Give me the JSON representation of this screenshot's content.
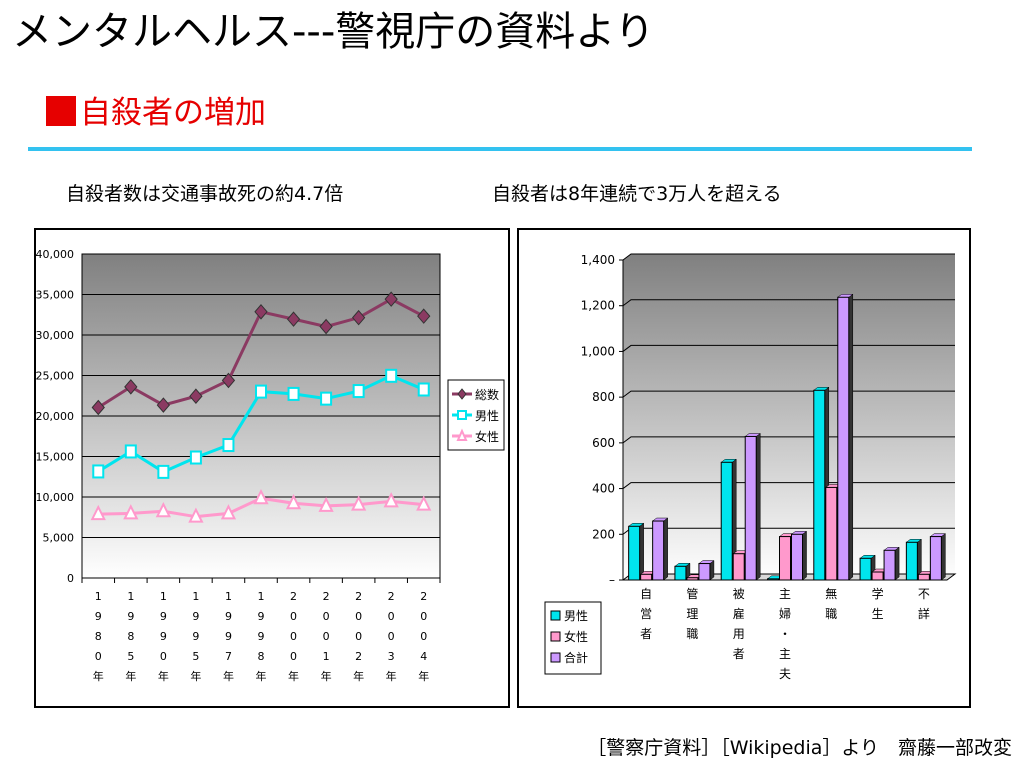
{
  "page": {
    "title": "メンタルヘルス---警視庁の資料より",
    "section_heading": "自殺者の増加",
    "caption_left": "自殺者数は交通事故死の約4.7倍",
    "caption_right": "自殺者は8年連続で3万人を超える",
    "source_note": "［警察庁資料］［Wikipedia］より　齋藤一部改変"
  },
  "colors": {
    "heading": "#e60000",
    "rule": "#33c2f0",
    "total": "#8b3a62",
    "male": "#00e5ee",
    "female": "#ff99cc",
    "total_bar": "#cc99ff"
  },
  "chart_data": [
    {
      "type": "line",
      "categories": [
        "1980年",
        "1985年",
        "1990年",
        "1995年",
        "1997年",
        "1998年",
        "2000年",
        "2001年",
        "2002年",
        "2003年",
        "2004年"
      ],
      "category_labels_vertical": [
        [
          "1",
          "9",
          "8",
          "0",
          "年"
        ],
        [
          "1",
          "9",
          "8",
          "5",
          "年"
        ],
        [
          "1",
          "9",
          "9",
          "0",
          "年"
        ],
        [
          "1",
          "9",
          "9",
          "5",
          "年"
        ],
        [
          "1",
          "9",
          "9",
          "7",
          "年"
        ],
        [
          "1",
          "9",
          "9",
          "8",
          "年"
        ],
        [
          "2",
          "0",
          "0",
          "0",
          "年"
        ],
        [
          "2",
          "0",
          "0",
          "1",
          "年"
        ],
        [
          "2",
          "0",
          "0",
          "2",
          "年"
        ],
        [
          "2",
          "0",
          "0",
          "3",
          "年"
        ],
        [
          "2",
          "0",
          "0",
          "4",
          "年"
        ]
      ],
      "series": [
        {
          "name": "総数",
          "values": [
            21048,
            23599,
            21346,
            22445,
            24391,
            32863,
            31957,
            31042,
            32143,
            34427,
            32325
          ]
        },
        {
          "name": "男性",
          "values": [
            13155,
            15624,
            13102,
            14874,
            16416,
            23013,
            22727,
            22144,
            23080,
            24963,
            23272
          ]
        },
        {
          "name": "女性",
          "values": [
            7893,
            7975,
            8244,
            7571,
            7975,
            9850,
            9230,
            8898,
            9063,
            9464,
            9053
          ]
        }
      ],
      "ylim": [
        0,
        40000
      ],
      "yticks": [
        "0",
        "5,000",
        "10,000",
        "15,000",
        "20,000",
        "25,000",
        "30,000",
        "35,000",
        "40,000"
      ],
      "grid": true,
      "legend": "right"
    },
    {
      "type": "bar",
      "categories": [
        "自営者",
        "管理職",
        "被雇用者",
        "主婦・主夫",
        "無職",
        "学生",
        "不詳"
      ],
      "category_labels_vertical": [
        [
          "自",
          "営",
          "者"
        ],
        [
          "管",
          "理",
          "職"
        ],
        [
          "被",
          "雇",
          "用",
          "者"
        ],
        [
          "主",
          "婦",
          "・",
          "主",
          "夫"
        ],
        [
          "無",
          "職"
        ],
        [
          "学",
          "生"
        ],
        [
          "不",
          "詳"
        ]
      ],
      "series": [
        {
          "name": "男性",
          "values": [
            235,
            60,
            515,
            5,
            830,
            95,
            165
          ]
        },
        {
          "name": "女性",
          "values": [
            25,
            10,
            115,
            190,
            405,
            35,
            25
          ]
        },
        {
          "name": "合計",
          "values": [
            258,
            72,
            628,
            200,
            1237,
            130,
            190
          ]
        }
      ],
      "ylim": [
        0,
        1400
      ],
      "yticks": [
        "–",
        "200",
        "400",
        "600",
        "800",
        "1,000",
        "1,200",
        "1,400"
      ],
      "grid": true,
      "legend": "bottom-left"
    }
  ]
}
